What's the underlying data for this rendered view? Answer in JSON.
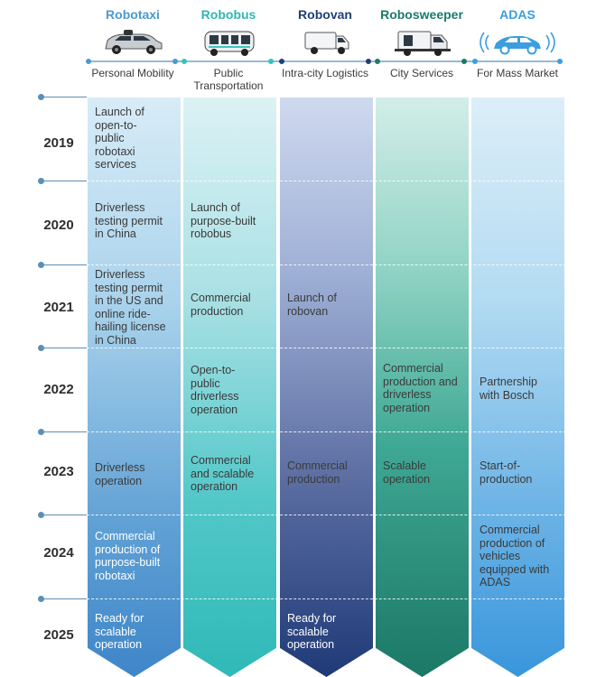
{
  "colors": {
    "robotaxi": "#4a9bd0",
    "robobus": "#33c2c0",
    "robovan": "#1f3f7a",
    "robosweeper": "#1b7a6a",
    "adas": "#3a9ee0"
  },
  "products": [
    {
      "name": "Robotaxi",
      "category": "Personal Mobility",
      "icon": "car-icon"
    },
    {
      "name": "Robobus",
      "category": "Public Transportation",
      "icon": "bus-icon"
    },
    {
      "name": "Robovan",
      "category": "Intra-city Logistics",
      "icon": "van-icon"
    },
    {
      "name": "Robosweeper",
      "category": "City Services",
      "icon": "sweeper-icon"
    },
    {
      "name": "ADAS",
      "category": "For Mass Market",
      "icon": "sensor-car-icon"
    }
  ],
  "years": [
    "2019",
    "2020",
    "2021",
    "2022",
    "2023",
    "2024",
    "2025"
  ],
  "cells": {
    "robotaxi": [
      "Launch of open-to-public robotaxi services",
      "Driverless testing permit in China",
      "Driverless testing permit in the US and online ride-hailing license in China",
      "",
      "Driverless operation",
      "Commercial production of purpose-built robotaxi",
      "Ready for scalable operation"
    ],
    "robobus": [
      "",
      "Launch of purpose-built robobus",
      "Commercial production",
      "Open-to-public driverless operation",
      "Commercial and scalable operation",
      "",
      ""
    ],
    "robovan": [
      "",
      "",
      "Launch of robovan",
      "",
      "Commercial production",
      "",
      "Ready for scalable operation"
    ],
    "robosweeper": [
      "",
      "",
      "",
      "Commercial production and driverless operation",
      "Scalable operation",
      "",
      ""
    ],
    "adas": [
      "",
      "",
      "",
      "Partnership with Bosch",
      "Start-of-production",
      "Commercial production of vehicles equipped with ADAS",
      ""
    ]
  }
}
